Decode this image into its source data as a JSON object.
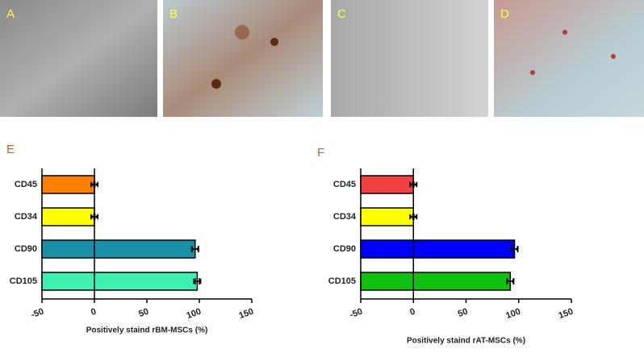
{
  "image_panels": [
    "A",
    "B",
    "C",
    "D"
  ],
  "chart_data": [
    {
      "type": "bar",
      "orientation": "horizontal",
      "panel_label": "E",
      "x_label": "Positively staind rBM-MSCs (%)",
      "categories": [
        "CD45",
        "CD34",
        "CD90",
        "CD105"
      ],
      "values": [
        0,
        0,
        96,
        98
      ],
      "errors": [
        0.5,
        0.5,
        3,
        2
      ],
      "colors": [
        "#ff8000",
        "#ffff00",
        "#1a8fa8",
        "#40f0b0"
      ],
      "xlim": [
        -50,
        150
      ],
      "xticks": [
        -50,
        0,
        50,
        100,
        150
      ]
    },
    {
      "type": "bar",
      "orientation": "horizontal",
      "panel_label": "F",
      "x_label": "Positively staind rAT-MSCs (%)",
      "categories": [
        "CD45",
        "CD34",
        "CD90",
        "CD105"
      ],
      "values": [
        0,
        0,
        96,
        92
      ],
      "errors": [
        0.5,
        0.5,
        3,
        3
      ],
      "colors": [
        "#f04040",
        "#ffff00",
        "#0000ff",
        "#10c010"
      ],
      "xlim": [
        -50,
        150
      ],
      "xticks": [
        -50,
        0,
        50,
        100,
        150
      ]
    }
  ]
}
